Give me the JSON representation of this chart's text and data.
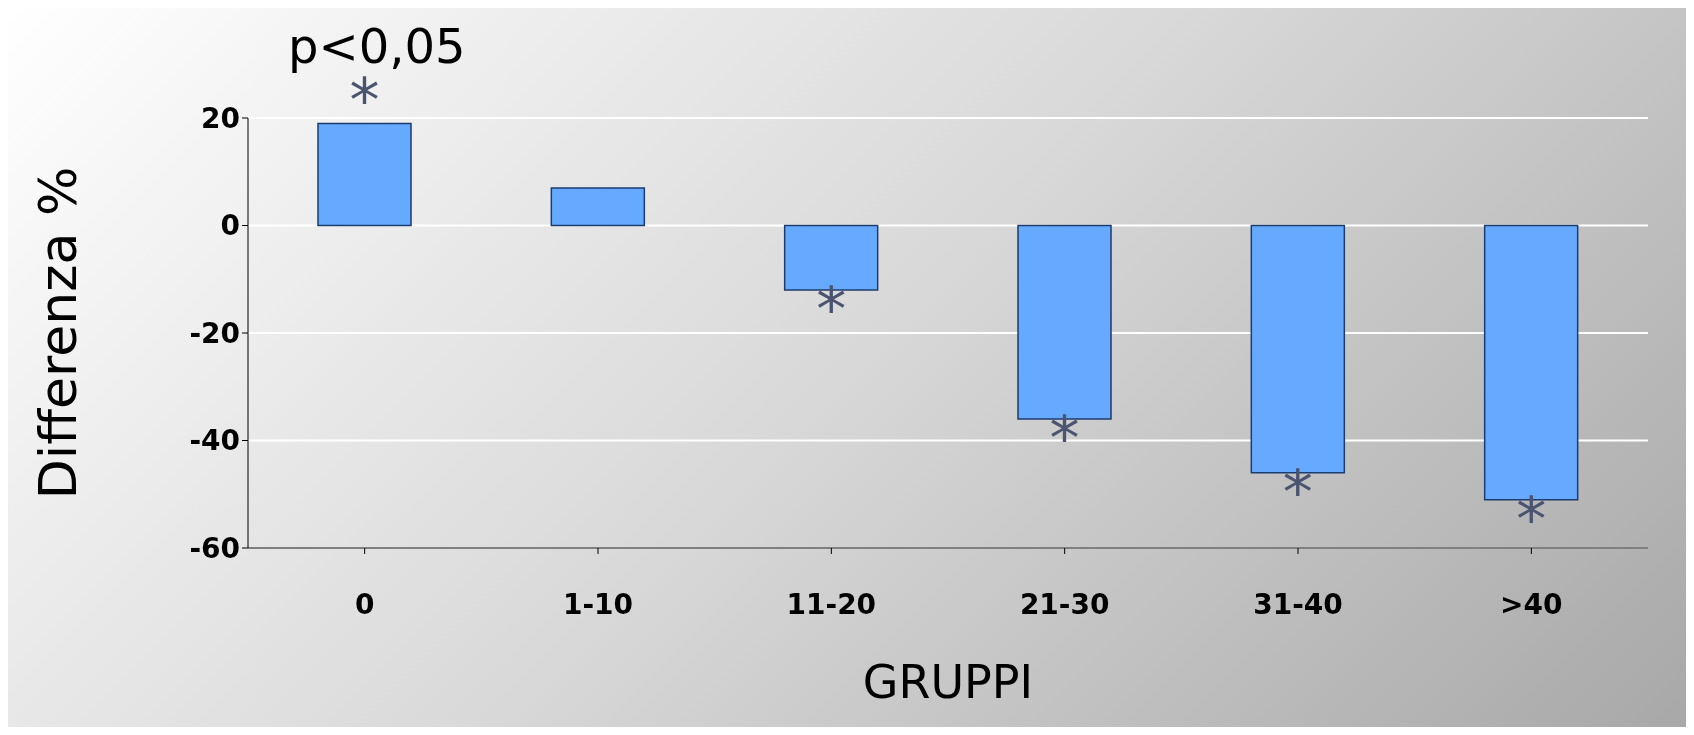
{
  "chart_data": {
    "type": "bar",
    "xlabel": "GRUPPI",
    "ylabel": "Differenza %",
    "categories": [
      "0",
      "1-10",
      "11-20",
      "21-30",
      "31-40",
      ">40"
    ],
    "values": [
      19,
      7,
      -12,
      -36,
      -46,
      -51
    ],
    "color": "#66aaff",
    "value_labels": [
      "*",
      null,
      "*",
      "*",
      "*",
      "*"
    ],
    "ylim": [
      -60,
      20
    ],
    "yticks": [
      -60,
      -40,
      -20,
      0,
      20
    ],
    "grid": "y",
    "annotations": [
      "p<0,05"
    ]
  }
}
